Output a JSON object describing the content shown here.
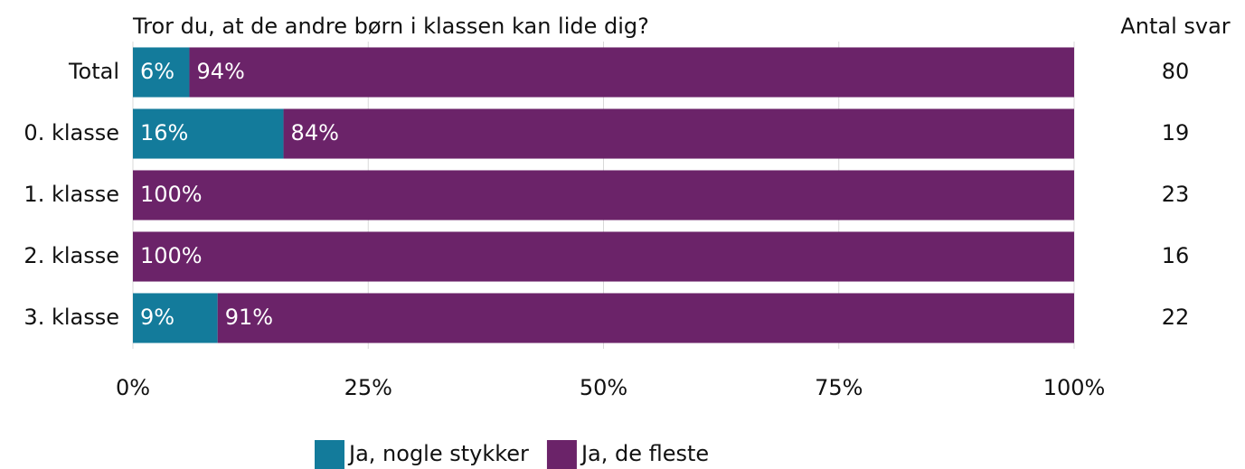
{
  "chart_data": {
    "type": "stacked_bar_horizontal",
    "title": "Tror du, at de andre børn i klassen kan lide dig?",
    "categories": [
      "Total",
      "0. klasse",
      "1. klasse",
      "2. klasse",
      "3. klasse"
    ],
    "series": [
      {
        "name": "Ja, nogle stykker",
        "color": "#137b9b",
        "values": [
          6,
          16,
          0,
          0,
          9
        ],
        "value_labels": [
          "6%",
          "16%",
          null,
          null,
          "9%"
        ]
      },
      {
        "name": "Ja, de fleste",
        "color": "#6b2369",
        "values": [
          94,
          84,
          100,
          100,
          91
        ],
        "value_labels": [
          "94%",
          "84%",
          "100%",
          "100%",
          "91%"
        ]
      }
    ],
    "xlim": [
      0,
      100
    ],
    "xticks": [
      {
        "value": 0,
        "label": "0%"
      },
      {
        "value": 25,
        "label": "25%"
      },
      {
        "value": 50,
        "label": "50%"
      },
      {
        "value": 75,
        "label": "75%"
      },
      {
        "value": 100,
        "label": "100%"
      }
    ],
    "grid": true,
    "legend": "bottom",
    "counts_title": "Antal svar",
    "counts": [
      80,
      19,
      23,
      16,
      22
    ]
  }
}
